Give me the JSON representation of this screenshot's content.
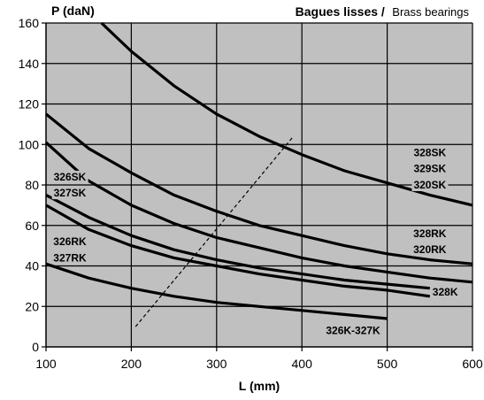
{
  "chart_data": {
    "type": "line",
    "title_bold": "Bagues lisses /",
    "title_normal": "Brass bearings",
    "xlabel": "L (mm)",
    "ylabel": "P (daN)",
    "xlim": [
      100,
      600
    ],
    "ylim": [
      0,
      160
    ],
    "x_ticks": [
      100,
      200,
      300,
      400,
      500,
      600
    ],
    "y_ticks": [
      0,
      20,
      40,
      60,
      80,
      100,
      120,
      140,
      160
    ],
    "grid": true,
    "plot_background": "#c0c0c0",
    "line_color": "#000000",
    "series": [
      {
        "points": [
          [
            165,
            160
          ],
          [
            200,
            146
          ],
          [
            250,
            129
          ],
          [
            300,
            115
          ],
          [
            350,
            104
          ],
          [
            400,
            95
          ],
          [
            450,
            87
          ],
          [
            500,
            81
          ],
          [
            550,
            75
          ],
          [
            600,
            70
          ]
        ]
      },
      {
        "points": [
          [
            100,
            115
          ],
          [
            150,
            98
          ],
          [
            200,
            86
          ],
          [
            250,
            75
          ],
          [
            300,
            67
          ],
          [
            350,
            60
          ],
          [
            400,
            55
          ],
          [
            450,
            50
          ],
          [
            500,
            46
          ],
          [
            550,
            43
          ],
          [
            600,
            41
          ]
        ]
      },
      {
        "points": [
          [
            100,
            101
          ],
          [
            150,
            82
          ],
          [
            200,
            70
          ],
          [
            250,
            61
          ],
          [
            300,
            54
          ],
          [
            350,
            49
          ],
          [
            400,
            44
          ],
          [
            450,
            40
          ],
          [
            500,
            37
          ],
          [
            550,
            34
          ],
          [
            600,
            32
          ]
        ]
      },
      {
        "points": [
          [
            100,
            75
          ],
          [
            150,
            64
          ],
          [
            200,
            55
          ],
          [
            250,
            48
          ],
          [
            300,
            43
          ],
          [
            350,
            39
          ],
          [
            400,
            36
          ],
          [
            450,
            33
          ],
          [
            500,
            31
          ],
          [
            550,
            29
          ]
        ]
      },
      {
        "points": [
          [
            100,
            70
          ],
          [
            150,
            58
          ],
          [
            200,
            50
          ],
          [
            250,
            44
          ],
          [
            300,
            40
          ],
          [
            350,
            36
          ],
          [
            400,
            33
          ],
          [
            450,
            30
          ],
          [
            500,
            28
          ],
          [
            550,
            25
          ]
        ]
      },
      {
        "points": [
          [
            100,
            41
          ],
          [
            150,
            34
          ],
          [
            200,
            29
          ],
          [
            250,
            25
          ],
          [
            300,
            22
          ],
          [
            350,
            20
          ],
          [
            400,
            18
          ],
          [
            450,
            16
          ],
          [
            500,
            14
          ]
        ]
      }
    ],
    "dashed_line": {
      "points": [
        [
          205,
          10
        ],
        [
          390,
          104
        ]
      ]
    },
    "labels": [
      {
        "text": "328SK",
        "x": 550,
        "y": 96
      },
      {
        "text": "329SK",
        "x": 550,
        "y": 88
      },
      {
        "text": "320SK",
        "x": 550,
        "y": 80
      },
      {
        "text": "326SK",
        "x": 128,
        "y": 84
      },
      {
        "text": "327SK",
        "x": 128,
        "y": 76
      },
      {
        "text": "328RK",
        "x": 550,
        "y": 56
      },
      {
        "text": "320RK",
        "x": 550,
        "y": 48
      },
      {
        "text": "326RK",
        "x": 128,
        "y": 52
      },
      {
        "text": "327RK",
        "x": 128,
        "y": 44
      },
      {
        "text": "328K",
        "x": 568,
        "y": 27
      },
      {
        "text": "326K-327K",
        "x": 460,
        "y": 8
      }
    ]
  }
}
